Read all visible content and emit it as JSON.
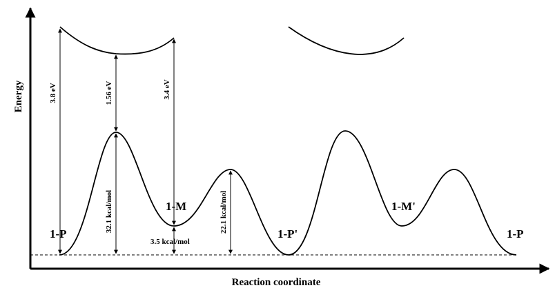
{
  "axes": {
    "y_title": "Energy",
    "x_title": "Reaction coordinate"
  },
  "states": {
    "p_left": "1-P",
    "m": "1-M",
    "p_prime": "1-P'",
    "m_prime": "1-M'",
    "p_right": "1-P"
  },
  "excitations": {
    "e1": "3.8 eV",
    "e2": "1.56 eV",
    "e3": "3.4 eV"
  },
  "barriers": {
    "b1": "32.1 kcal/mol",
    "b2": "3.5 kcal/mol",
    "b3": "22.1 kcal/mol"
  }
}
